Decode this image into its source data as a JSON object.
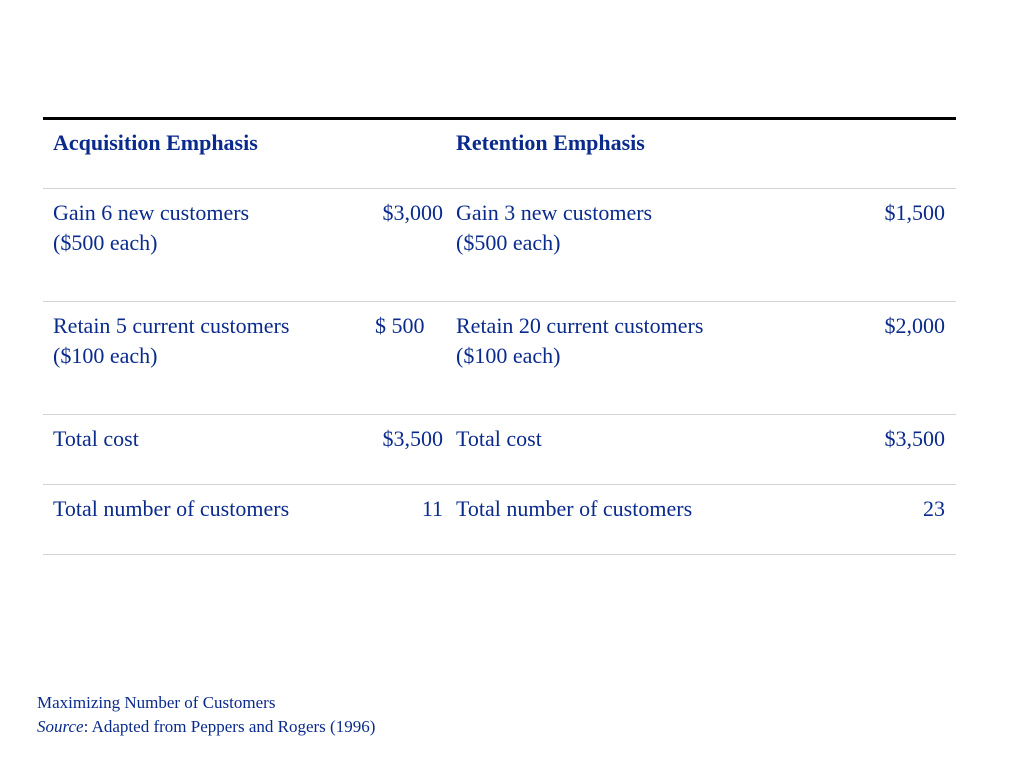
{
  "table": {
    "headers": {
      "left": "Acquisition Emphasis",
      "right": "Retention Emphasis"
    },
    "rows": [
      {
        "left_label_line1": "Gain 6 new customers",
        "left_label_line2": "($500 each)",
        "left_value": "$3,000",
        "right_label_line1": "Gain 3 new customers",
        "right_label_line2": "($500 each)",
        "right_value": "$1,500"
      },
      {
        "left_label_line1": "Retain 5 current customers",
        "left_label_line2": "($100 each)",
        "left_value": "$ 500",
        "right_label_line1": "Retain 20 current customers",
        "right_label_line2": "($100 each)",
        "right_value": "$2,000"
      },
      {
        "left_label_line1": "Total cost",
        "left_value": "$3,500",
        "right_label_line1": "Total cost",
        "right_value": "$3,500"
      },
      {
        "left_label_line1": "Total number of customers",
        "left_value": "11",
        "right_label_line1": "Total number of customers",
        "right_value": "23"
      }
    ]
  },
  "caption": {
    "title": "Maximizing Number of Customers",
    "source_label": "Source",
    "source_text": ": Adapted from Peppers and Rogers (1996)"
  },
  "colors": {
    "text": "#0a2a8c",
    "top_rule": "#000000",
    "row_rule": "#d4d4d4"
  }
}
